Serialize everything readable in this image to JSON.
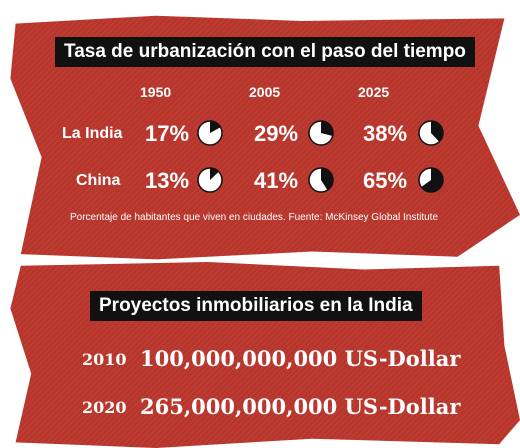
{
  "urbanization": {
    "title": "Tasa de urbanización con el paso del tiempo",
    "years": [
      "1950",
      "2005",
      "2025"
    ],
    "rows": [
      {
        "country": "La India",
        "values": [
          "17%",
          "29%",
          "38%"
        ],
        "fractions": [
          0.17,
          0.29,
          0.38
        ]
      },
      {
        "country": "China",
        "values": [
          "13%",
          "41%",
          "65%"
        ],
        "fractions": [
          0.13,
          0.41,
          0.65
        ]
      }
    ],
    "source": "Porcentaje de habitantes que viven en ciudades. Fuente: McKinsey Global Institute"
  },
  "investment": {
    "title": "Proyectos inmobiliarios en la India",
    "rows": [
      {
        "year": "2010",
        "amount": "100,000,000,000 US-Dollar"
      },
      {
        "year": "2020",
        "amount": "265,000,000,000 US-Dollar"
      }
    ]
  },
  "colors": {
    "panel": "#b8352c",
    "pie_fill": "#ffffff",
    "pie_dark": "#111111"
  }
}
